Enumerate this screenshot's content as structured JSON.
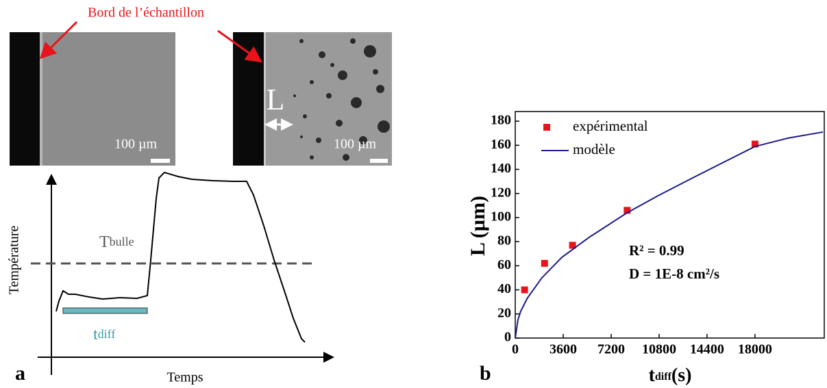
{
  "panel_a": {
    "edge_label": "Bord de l’échantillon",
    "scale_left": "100 µm",
    "scale_right": "100 µm",
    "length_label": "L",
    "y_label": "Température",
    "x_label": "Temps",
    "threshold_main": "T",
    "threshold_sub": "bulle",
    "duration_main": "t",
    "duration_sub": "diff",
    "panel_label": "a"
  },
  "chart_data": {
    "type": "scatter",
    "panel_label": "b",
    "x_label": {
      "main": "t",
      "sub": "diff",
      "unit": "(s)"
    },
    "y_label": "L (µm)",
    "xlim": [
      0,
      23200
    ],
    "xticks": [
      0,
      3600,
      7200,
      10800,
      14400,
      18000
    ],
    "ylim": [
      0,
      188
    ],
    "yticks": [
      0,
      20,
      40,
      60,
      80,
      100,
      120,
      140,
      160,
      180
    ],
    "legend": "upper left",
    "series": [
      {
        "name": "expérimental",
        "color": "#e8141b",
        "kind": "scatter",
        "x": [
          700,
          2200,
          4300,
          8400,
          18000
        ],
        "values": [
          40,
          62,
          77,
          106,
          161
        ]
      },
      {
        "name": "modèle",
        "color": "#1a1a8c",
        "kind": "line",
        "x": [
          0,
          200,
          400,
          900,
          2000,
          3500,
          5600,
          8400,
          10700,
          12800,
          15300,
          18000,
          20500,
          23100
        ],
        "values": [
          0,
          15,
          22,
          33,
          50,
          67,
          84,
          104,
          118,
          130,
          144,
          159,
          166,
          171
        ]
      }
    ],
    "annotations": [
      "R² = 0.99",
      "D = 1E-8 cm²/s"
    ]
  }
}
